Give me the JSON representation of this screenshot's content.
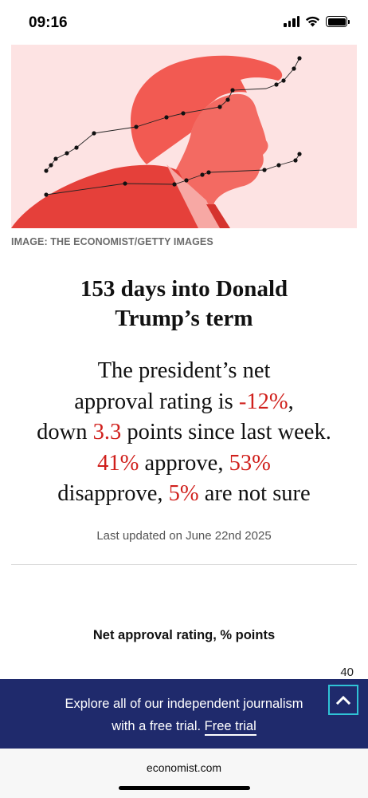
{
  "status_bar": {
    "time": "09:16",
    "icons": [
      "signal-icon",
      "wifi-icon",
      "battery-icon"
    ]
  },
  "hero": {
    "credit": "IMAGE: THE ECONOMIST/GETTY IMAGES",
    "colors": {
      "background": "#fde3e3",
      "figure": "#f04a44"
    }
  },
  "article": {
    "headline_lines": [
      "153 days into Donald",
      "Trump’s term"
    ],
    "summary": {
      "line1": "The president’s net",
      "line2_prefix": "approval rating is ",
      "net_rating": "-12%",
      "line2_suffix": ",",
      "line3_prefix": "down ",
      "change": "3.3",
      "line3_suffix": " points since last week.",
      "approve_value": "41%",
      "approve_label": " approve, ",
      "disapprove_value": "53%",
      "disapprove_label": "disapprove, ",
      "not_sure_value": "5%",
      "not_sure_label": " are not sure"
    },
    "updated": "Last updated on June 22nd 2025"
  },
  "chart": {
    "title": "Net approval rating, % points",
    "top_tick": "40"
  },
  "banner": {
    "line1": "Explore all of our independent journalism",
    "line2_prefix": "with a free trial. ",
    "cta": "Free trial",
    "background": "#1f2a6c"
  },
  "browser": {
    "url": "economist.com"
  },
  "colors": {
    "accent_red": "#d0201c",
    "scroll_button_border": "#2fc3d6"
  }
}
